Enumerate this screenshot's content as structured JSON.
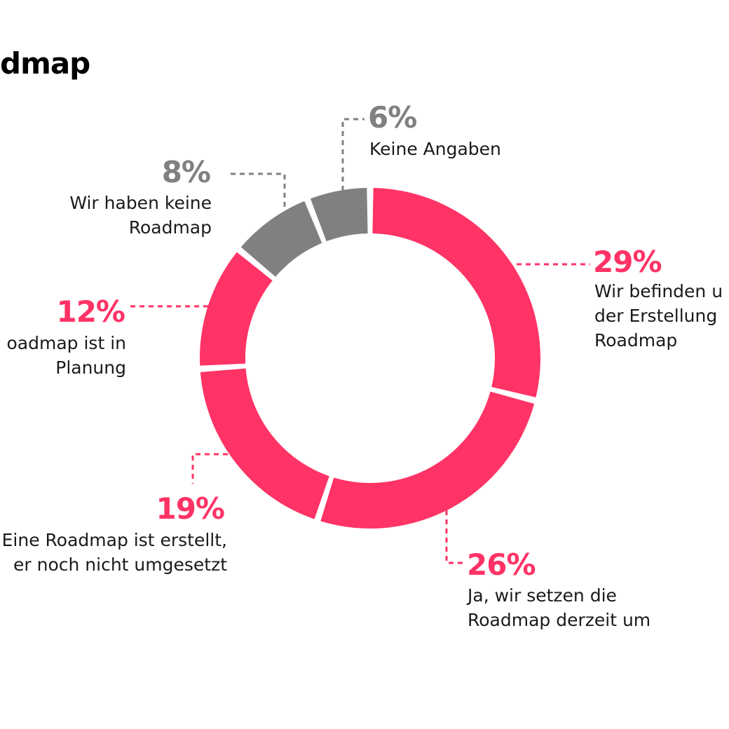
{
  "title": "dmap",
  "colors": {
    "accent": "#ff3366",
    "neutral": "#808080",
    "text": "#1a1a1a",
    "background": "#ffffff"
  },
  "chart_data": {
    "type": "pie",
    "variant": "donut",
    "title": "dmap",
    "legend": "none",
    "start": "top",
    "direction": "clockwise",
    "slices": [
      {
        "key": "s29",
        "value": 29,
        "percent_label": "29%",
        "label_lines": [
          "Wir befinden u",
          "der Erstellung",
          "Roadmap"
        ],
        "color": "#ff3366"
      },
      {
        "key": "s26",
        "value": 26,
        "percent_label": "26%",
        "label_lines": [
          "Ja, wir setzen die",
          "Roadmap derzeit um"
        ],
        "color": "#ff3366"
      },
      {
        "key": "s19",
        "value": 19,
        "percent_label": "19%",
        "label_lines": [
          "Eine Roadmap ist erstellt,",
          "er noch nicht umgesetzt"
        ],
        "color": "#ff3366"
      },
      {
        "key": "s12",
        "value": 12,
        "percent_label": "12%",
        "label_lines": [
          "oadmap ist in",
          "Planung"
        ],
        "color": "#ff3366"
      },
      {
        "key": "s8",
        "value": 8,
        "percent_label": "8%",
        "label_lines": [
          "Wir haben keine",
          "Roadmap"
        ],
        "color": "#808080"
      },
      {
        "key": "s6",
        "value": 6,
        "percent_label": "6%",
        "label_lines": [
          "Keine Angaben"
        ],
        "color": "#808080"
      }
    ]
  }
}
